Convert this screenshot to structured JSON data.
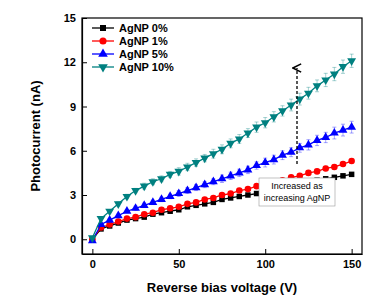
{
  "chart_data": {
    "type": "line",
    "x_label": "Reverse bias voltage (V)",
    "y_label": "Photocurrent (nA)",
    "annotation": [
      "Increased as",
      "increasing AgNP"
    ],
    "x": [
      0,
      5,
      10,
      15,
      20,
      25,
      30,
      35,
      40,
      45,
      50,
      55,
      60,
      65,
      70,
      75,
      80,
      85,
      90,
      95,
      100,
      105,
      110,
      115,
      120,
      125,
      130,
      135,
      140,
      145,
      150
    ],
    "xlim": [
      -6,
      156
    ],
    "xticks": [
      0,
      50,
      100,
      150
    ],
    "ylim": [
      -1,
      15
    ],
    "yticks": [
      0,
      3,
      6,
      9,
      12,
      15
    ],
    "legend": "upper left",
    "series": [
      {
        "name": "AgNP 0%",
        "color": "#000000",
        "marker": "square",
        "values": [
          0,
          0.7,
          0.9,
          1.1,
          1.3,
          1.4,
          1.5,
          1.7,
          1.8,
          1.9,
          2.0,
          2.2,
          2.3,
          2.4,
          2.5,
          2.7,
          2.8,
          2.9,
          3.0,
          3.1,
          3.3,
          3.4,
          3.5,
          3.6,
          3.8,
          3.9,
          4.0,
          4.1,
          4.2,
          4.3,
          4.4
        ],
        "errors": [
          0.02,
          0.05,
          0.05,
          0.05,
          0.05,
          0.05,
          0.05,
          0.05,
          0.05,
          0.05,
          0.08,
          0.08,
          0.08,
          0.08,
          0.08,
          0.1,
          0.1,
          0.1,
          0.1,
          0.1,
          0.1,
          0.1,
          0.1,
          0.1,
          0.12,
          0.12,
          0.12,
          0.12,
          0.12,
          0.12,
          0.12
        ]
      },
      {
        "name": "AgNP 1%",
        "color": "#ff0000",
        "marker": "circle",
        "values": [
          0,
          0.8,
          1.0,
          1.2,
          1.4,
          1.5,
          1.7,
          1.8,
          2.0,
          2.1,
          2.2,
          2.4,
          2.5,
          2.7,
          2.8,
          3.0,
          3.1,
          3.3,
          3.4,
          3.6,
          3.7,
          3.9,
          4.0,
          4.2,
          4.3,
          4.5,
          4.6,
          4.8,
          4.9,
          5.1,
          5.3
        ],
        "errors": [
          0.02,
          0.05,
          0.05,
          0.05,
          0.05,
          0.05,
          0.08,
          0.08,
          0.08,
          0.08,
          0.1,
          0.1,
          0.1,
          0.1,
          0.1,
          0.1,
          0.1,
          0.12,
          0.12,
          0.12,
          0.12,
          0.12,
          0.12,
          0.12,
          0.15,
          0.15,
          0.15,
          0.15,
          0.15,
          0.15,
          0.15
        ]
      },
      {
        "name": "AgNP 5%",
        "color": "#0000ff",
        "marker": "triangle-up",
        "values": [
          -0.1,
          1.0,
          1.3,
          1.6,
          1.9,
          2.1,
          2.3,
          2.5,
          2.7,
          2.9,
          3.1,
          3.3,
          3.5,
          3.7,
          3.9,
          4.1,
          4.3,
          4.5,
          4.7,
          5.0,
          5.2,
          5.4,
          5.7,
          5.9,
          6.2,
          6.4,
          6.7,
          6.9,
          7.2,
          7.4,
          7.6
        ],
        "errors": [
          0.05,
          0.1,
          0.1,
          0.1,
          0.1,
          0.15,
          0.15,
          0.15,
          0.15,
          0.15,
          0.2,
          0.2,
          0.2,
          0.2,
          0.2,
          0.25,
          0.25,
          0.25,
          0.25,
          0.25,
          0.3,
          0.3,
          0.3,
          0.3,
          0.3,
          0.35,
          0.35,
          0.35,
          0.4,
          0.4,
          0.4
        ]
      },
      {
        "name": "AgNP 10%",
        "color": "#008080",
        "marker": "triangle-down",
        "values": [
          0.1,
          1.4,
          1.9,
          2.4,
          2.9,
          3.3,
          3.6,
          3.9,
          4.1,
          4.4,
          4.6,
          4.9,
          5.2,
          5.5,
          5.8,
          6.1,
          6.5,
          6.8,
          7.2,
          7.6,
          7.9,
          8.3,
          8.7,
          9.1,
          9.5,
          9.9,
          10.4,
          10.8,
          11.2,
          11.7,
          12.1
        ],
        "errors": [
          0.05,
          0.1,
          0.1,
          0.15,
          0.15,
          0.15,
          0.2,
          0.2,
          0.2,
          0.2,
          0.25,
          0.25,
          0.25,
          0.25,
          0.3,
          0.3,
          0.3,
          0.3,
          0.3,
          0.35,
          0.35,
          0.35,
          0.35,
          0.4,
          0.4,
          0.4,
          0.4,
          0.45,
          0.45,
          0.45,
          0.45
        ]
      }
    ]
  }
}
